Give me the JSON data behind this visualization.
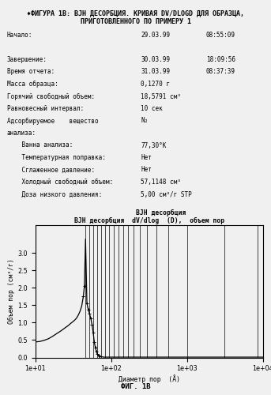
{
  "title_line1": "♦ФИГУРА 1В: BJH ДЕСОРБЦИЯ. КРИВАЯ DV/DLOGD ДЛЯ ОБРАЗЦА,",
  "title_line2": "ПРИГОТОВЛЕННОГО ПО ПРИМЕРУ 1",
  "info_left": [
    "Начало:",
    "",
    "Завершение:",
    "Время отчета:",
    "Масса образца:",
    "Горячий свободный объем:",
    "Равновесный интервал:",
    "Адсорбируемое    вещество",
    "анализа:",
    "    Ванна анализа:",
    "    Температурная поправка:",
    "    Сглаженное давление:",
    "    Холодный свободный объем:",
    "    Доза низкого давления:"
  ],
  "info_mid": [
    "29.03.99",
    "",
    "30.03.99",
    "31.03.99",
    "0,1270 г",
    "18,5791 см³",
    "10 сек",
    "N₂",
    "",
    "77,30°K",
    "Нет",
    "Нет",
    "57,1148 см³",
    "5,00 см³/г STP"
  ],
  "info_right": [
    "08:55:09",
    "",
    "18:09:56",
    "08:37:39",
    "",
    "",
    "",
    "",
    "",
    "",
    "",
    "",
    "",
    ""
  ],
  "chart_title_left": "BJH десорбция",
  "chart_title_italic": "dV/dlog",
  "chart_title_right": "(D),  объем пор",
  "xlabel": "Диаметр пор  (Å)",
  "ylabel": "Объем пор (см³/г)",
  "fig_label": "ФИГ. 1В",
  "xlim": [
    10,
    10000
  ],
  "ylim": [
    0.0,
    3.8
  ],
  "yticks": [
    0.0,
    0.5,
    1.0,
    1.5,
    2.0,
    2.5,
    3.0
  ],
  "curve_x": [
    10.5,
    11.5,
    13.0,
    15.0,
    17.0,
    19.0,
    21.0,
    23.0,
    25.0,
    27.0,
    29.0,
    31.0,
    33.0,
    35.0,
    37.0,
    39.0,
    41.0,
    43.0,
    44.5,
    46.0,
    48.0,
    50.0,
    52.0,
    54.0,
    56.0,
    58.0,
    60.0,
    62.0,
    64.0,
    66.0,
    68.0,
    70.0,
    72.0,
    75.0,
    80.0,
    85.0,
    90.0,
    95.0,
    100.0,
    110.0,
    120.0,
    140.0,
    200.0,
    500.0,
    1000.0,
    5000.0,
    10000.0
  ],
  "curve_y": [
    0.45,
    0.46,
    0.49,
    0.54,
    0.61,
    0.68,
    0.74,
    0.8,
    0.86,
    0.91,
    0.97,
    1.02,
    1.07,
    1.13,
    1.22,
    1.33,
    1.48,
    1.75,
    2.05,
    3.4,
    1.55,
    1.38,
    1.25,
    1.12,
    0.95,
    0.72,
    0.45,
    0.28,
    0.17,
    0.1,
    0.06,
    0.04,
    0.03,
    0.02,
    0.01,
    0.01,
    0.01,
    0.01,
    0.01,
    0.01,
    0.01,
    0.01,
    0.01,
    0.01,
    0.01,
    0.01,
    0.01
  ],
  "marker_x": [
    43.0,
    44.5,
    48.0,
    50.0,
    52.0,
    54.0,
    56.0,
    58.0,
    60.0,
    62.0,
    64.0,
    66.0,
    68.0,
    70.0
  ],
  "marker_y": [
    1.75,
    2.05,
    1.55,
    1.38,
    1.25,
    1.12,
    0.95,
    0.72,
    0.45,
    0.28,
    0.17,
    0.1,
    0.06,
    0.04
  ],
  "vlines_x": [
    46.0,
    52.0,
    58.0,
    65.0,
    73.0,
    83.0,
    94.0,
    108.0,
    124.0,
    143.0,
    167.0,
    197.0,
    238.0,
    298.0,
    395.0,
    565.0,
    1020.0,
    3100.0,
    8500.0
  ],
  "background_color": "#f0f0f0",
  "text_color": "#000000",
  "curve_color": "#000000"
}
